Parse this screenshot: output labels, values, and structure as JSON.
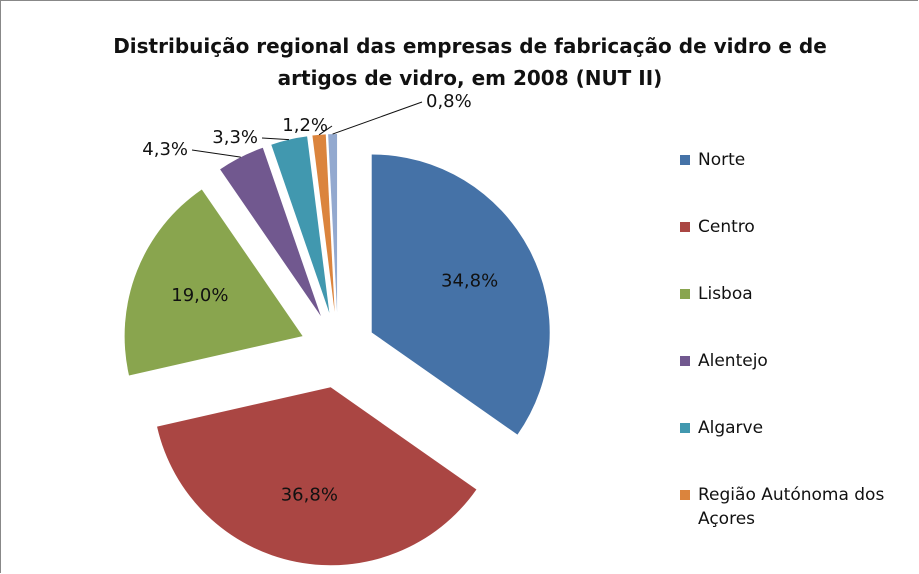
{
  "chart_data": {
    "type": "pie",
    "title": "Distribuição regional das empresas de fabricação de vidro e de artigos de vidro, em 2008 (NUT II)",
    "categories": [
      "Norte",
      "Centro",
      "Lisboa",
      "Alentejo",
      "Algarve",
      "Região Autónoma dos Açores",
      null
    ],
    "values": [
      34.8,
      36.8,
      19.0,
      4.3,
      3.3,
      1.2,
      0.8
    ],
    "value_labels": [
      "34,8%",
      "36,8%",
      "19,0%",
      "4,3%",
      "3,3%",
      "1,2%",
      "0,8%"
    ],
    "colors": [
      "#4572a7",
      "#aa4643",
      "#89a54e",
      "#71588f",
      "#4198af",
      "#db843d",
      "#93a9cf"
    ]
  }
}
